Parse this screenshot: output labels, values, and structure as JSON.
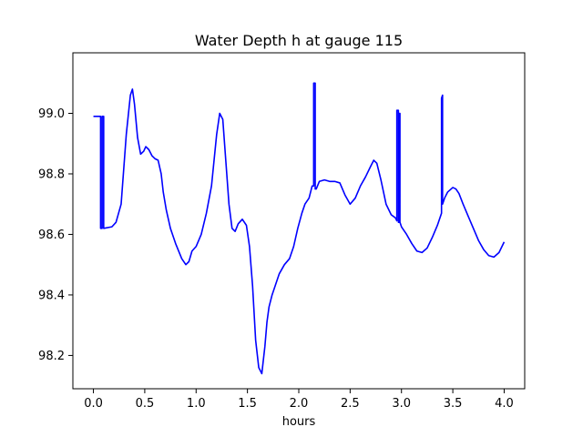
{
  "chart_data": {
    "type": "line",
    "title": "Water Depth h at gauge 115",
    "xlabel": "hours",
    "ylabel": "",
    "xlim": [
      -0.2,
      4.2
    ],
    "ylim": [
      98.09,
      99.2
    ],
    "xticks": [
      0.0,
      0.5,
      1.0,
      1.5,
      2.0,
      2.5,
      3.0,
      3.5,
      4.0
    ],
    "xtick_labels": [
      "0.0",
      "0.5",
      "1.0",
      "1.5",
      "2.0",
      "2.5",
      "3.0",
      "3.5",
      "4.0"
    ],
    "yticks": [
      98.2,
      98.4,
      98.6,
      98.8,
      99.0
    ],
    "ytick_labels": [
      "98.2",
      "98.4",
      "98.6",
      "98.8",
      "99.0"
    ],
    "grid": false,
    "legend": "none",
    "series": [
      {
        "color": "#0000ff",
        "x": [
          0.0,
          0.07,
          0.07,
          0.085,
          0.085,
          0.1,
          0.1,
          0.18,
          0.22,
          0.27,
          0.32,
          0.36,
          0.38,
          0.4,
          0.43,
          0.46,
          0.49,
          0.51,
          0.54,
          0.57,
          0.6,
          0.63,
          0.66,
          0.68,
          0.71,
          0.75,
          0.8,
          0.86,
          0.9,
          0.93,
          0.96,
          1.0,
          1.05,
          1.1,
          1.15,
          1.2,
          1.23,
          1.26,
          1.29,
          1.32,
          1.35,
          1.38,
          1.41,
          1.45,
          1.49,
          1.52,
          1.55,
          1.58,
          1.61,
          1.64,
          1.67,
          1.69,
          1.71,
          1.74,
          1.77,
          1.81,
          1.86,
          1.91,
          1.95,
          1.99,
          2.03,
          2.06,
          2.1,
          2.13,
          2.145,
          2.145,
          2.16,
          2.16,
          2.17,
          2.2,
          2.25,
          2.3,
          2.35,
          2.4,
          2.45,
          2.5,
          2.55,
          2.6,
          2.65,
          2.7,
          2.73,
          2.76,
          2.8,
          2.85,
          2.9,
          2.94,
          2.955,
          2.955,
          2.97,
          2.97,
          2.975,
          2.975,
          2.985,
          2.985,
          3.0,
          3.05,
          3.1,
          3.15,
          3.2,
          3.25,
          3.3,
          3.35,
          3.39,
          3.39,
          3.4,
          3.4,
          3.42,
          3.45,
          3.5,
          3.53,
          3.56,
          3.6,
          3.65,
          3.7,
          3.75,
          3.8,
          3.85,
          3.9,
          3.95,
          4.0
        ],
        "y": [
          98.99,
          98.99,
          98.62,
          98.62,
          98.99,
          98.99,
          98.62,
          98.625,
          98.64,
          98.7,
          98.93,
          99.06,
          99.08,
          99.03,
          98.92,
          98.865,
          98.875,
          98.89,
          98.88,
          98.86,
          98.85,
          98.845,
          98.8,
          98.74,
          98.68,
          98.62,
          98.57,
          98.52,
          98.5,
          98.51,
          98.545,
          98.56,
          98.6,
          98.67,
          98.76,
          98.93,
          99.0,
          98.98,
          98.84,
          98.7,
          98.62,
          98.61,
          98.635,
          98.65,
          98.63,
          98.56,
          98.43,
          98.25,
          98.16,
          98.14,
          98.23,
          98.31,
          98.36,
          98.4,
          98.43,
          98.47,
          98.5,
          98.52,
          98.56,
          98.62,
          98.67,
          98.7,
          98.72,
          98.76,
          98.76,
          99.1,
          99.1,
          98.75,
          98.75,
          98.775,
          98.78,
          98.775,
          98.775,
          98.77,
          98.73,
          98.7,
          98.72,
          98.76,
          98.79,
          98.825,
          98.845,
          98.835,
          98.78,
          98.7,
          98.665,
          98.655,
          98.645,
          99.01,
          99.01,
          98.64,
          98.64,
          99.0,
          99.0,
          98.64,
          98.625,
          98.6,
          98.57,
          98.545,
          98.54,
          98.555,
          98.59,
          98.63,
          98.67,
          99.05,
          99.06,
          98.7,
          98.72,
          98.74,
          98.755,
          98.75,
          98.735,
          98.7,
          98.66,
          98.62,
          98.58,
          98.55,
          98.53,
          98.525,
          98.54,
          98.575
        ]
      }
    ]
  }
}
